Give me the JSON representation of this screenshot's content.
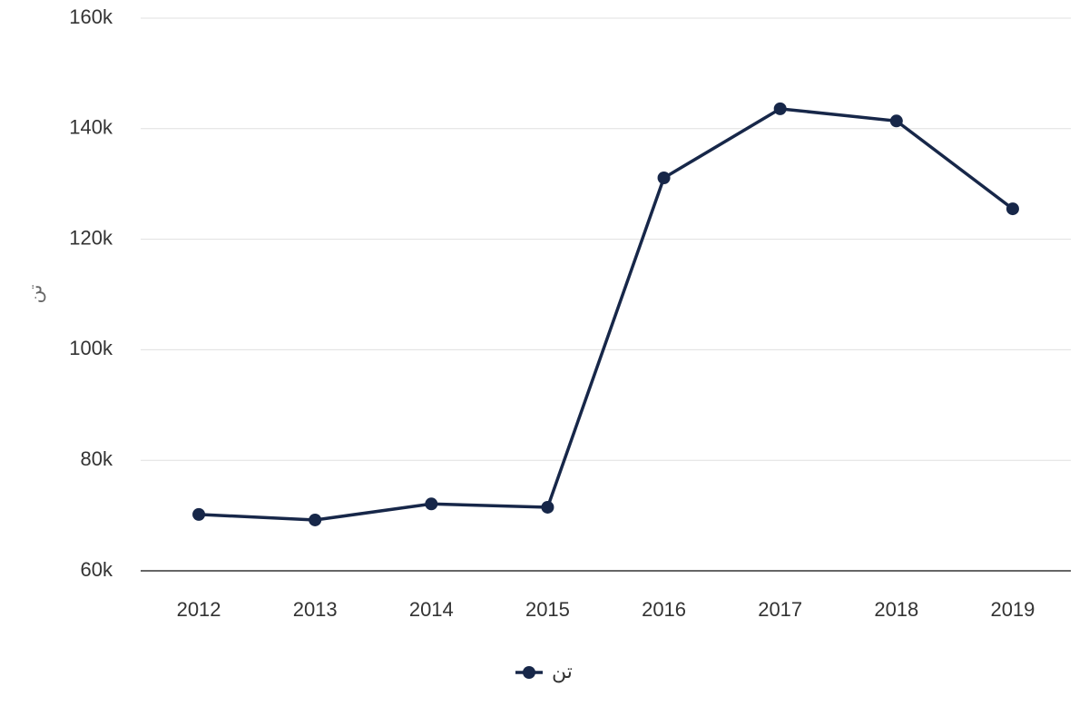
{
  "chart_data": {
    "type": "line",
    "y_label": "تن",
    "categories": [
      "2012",
      "2013",
      "2014",
      "2015",
      "2016",
      "2017",
      "2018",
      "2019"
    ],
    "series": [
      {
        "name": "تن",
        "color": "#172749",
        "values": [
          70200,
          69200,
          72100,
          71500,
          131100,
          143600,
          141400,
          125500
        ]
      }
    ],
    "ylim": [
      60000,
      160000
    ],
    "yticks": [
      {
        "value": 60000,
        "label": "60k"
      },
      {
        "value": 80000,
        "label": "80k"
      },
      {
        "value": 100000,
        "label": "100k"
      },
      {
        "value": 120000,
        "label": "120k"
      },
      {
        "value": 140000,
        "label": "140k"
      },
      {
        "value": 160000,
        "label": "160k"
      }
    ],
    "grid": true,
    "legend": "bottom"
  }
}
